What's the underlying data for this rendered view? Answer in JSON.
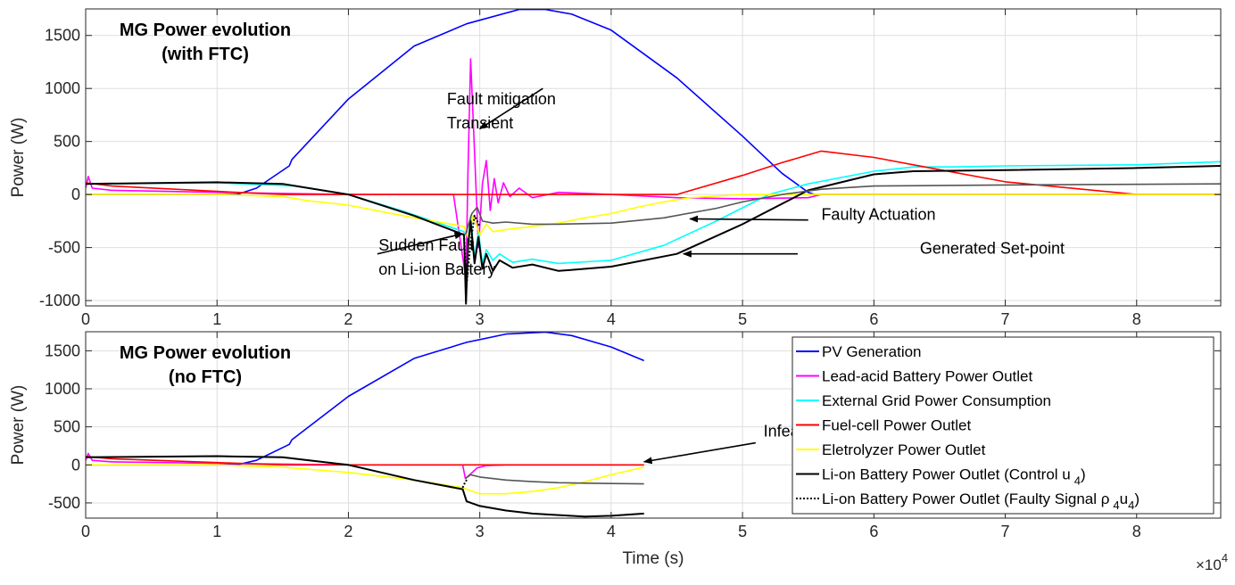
{
  "chart_data": [
    {
      "type": "line",
      "title": "MG Power evolution",
      "title_line2": "(with FTC)",
      "xlabel": "",
      "ylabel": "Power (W)",
      "xlim": [
        0,
        86400
      ],
      "ylim": [
        -1050,
        1750
      ],
      "xticks": [
        0,
        10000,
        20000,
        30000,
        40000,
        50000,
        60000,
        70000,
        80000
      ],
      "xtick_labels": [
        "0",
        "1",
        "2",
        "3",
        "4",
        "5",
        "6",
        "7",
        "8"
      ],
      "yticks": [
        -1000,
        -500,
        0,
        500,
        1000,
        1500
      ],
      "ytick_labels": [
        "-1000",
        "-500",
        "0",
        "500",
        "1000",
        "1500"
      ],
      "grid": true,
      "annotations": [
        {
          "lines": [
            "Fault mitigation",
            "Transient"
          ],
          "text_at": [
            27500,
            850
          ],
          "arrow_from": [
            34800,
            1000
          ],
          "arrow_to": [
            30000,
            620
          ]
        },
        {
          "lines": [
            "Faulty Actuation"
          ],
          "text_at": [
            56000,
            -240
          ],
          "arrow_from": [
            55000,
            -240
          ],
          "arrow_to": [
            46000,
            -230
          ]
        },
        {
          "lines": [
            "Generated Set-point"
          ],
          "text_at": [
            63500,
            -560
          ],
          "arrow_from": [
            54200,
            -560
          ],
          "arrow_to": [
            45500,
            -560
          ]
        },
        {
          "lines": [
            "Sudden Fault",
            "on Li-ion Battery"
          ],
          "text_at": [
            22300,
            -530
          ],
          "arrow_from": [
            22200,
            -560
          ],
          "arrow_to": [
            28700,
            -370
          ]
        }
      ],
      "series": [
        {
          "name": "PV Generation",
          "color": "#0000ff",
          "x": [
            0,
            5000,
            11500,
            13000,
            15500,
            15700,
            20000,
            25000,
            29000,
            33000,
            35000,
            37000,
            40000,
            45000,
            50000,
            53000,
            55000,
            55500,
            60000,
            70000,
            86400
          ],
          "y": [
            0,
            0,
            0,
            60,
            270,
            330,
            900,
            1400,
            1610,
            1745,
            1745,
            1700,
            1550,
            1100,
            550,
            200,
            20,
            0,
            0,
            0,
            0
          ]
        },
        {
          "name": "Lead-acid Battery Power Outlet",
          "color": "#ff00ff",
          "x": [
            0,
            200,
            500,
            2000,
            10000,
            20000,
            28000,
            28950,
            29100,
            29300,
            29600,
            29900,
            30200,
            30500,
            30800,
            31100,
            31400,
            31800,
            32300,
            33000,
            34000,
            36000,
            40000,
            45000,
            50000,
            55000,
            56000,
            60000,
            86400
          ],
          "y": [
            60,
            170,
            60,
            40,
            20,
            0,
            0,
            -800,
            200,
            1280,
            400,
            -500,
            100,
            320,
            -150,
            150,
            -80,
            110,
            -20,
            60,
            -30,
            20,
            0,
            -30,
            -40,
            -30,
            0,
            0,
            0
          ]
        },
        {
          "name": "External Grid Power Consumption",
          "color": "#00ffff",
          "x": [
            0,
            10000,
            16000,
            20000,
            24000,
            28800,
            28950,
            29100,
            29300,
            29600,
            29900,
            30200,
            30500,
            31000,
            31500,
            32500,
            34000,
            36000,
            40000,
            44000,
            48000,
            52000,
            55000,
            60000,
            63000,
            66000,
            70000,
            80000,
            86400
          ],
          "y": [
            100,
            110,
            80,
            0,
            -150,
            -350,
            -1000,
            -500,
            -200,
            -600,
            -350,
            -650,
            -520,
            -620,
            -560,
            -640,
            -610,
            -650,
            -620,
            -480,
            -250,
            0,
            100,
            220,
            260,
            260,
            270,
            280,
            310
          ]
        },
        {
          "name": "Fuel-cell Power Outlet",
          "color": "#ff0000",
          "x": [
            0,
            2000,
            10000,
            15000,
            20000,
            40000,
            45000,
            50000,
            53000,
            56000,
            60000,
            63000,
            70000,
            80000,
            86400
          ],
          "y": [
            110,
            80,
            30,
            0,
            0,
            0,
            0,
            180,
            300,
            410,
            350,
            280,
            120,
            0,
            0
          ]
        },
        {
          "name": "Eletrolyzer Power Outlet",
          "color": "#ffff00",
          "x": [
            0,
            10000,
            15000,
            17000,
            20000,
            25000,
            28800,
            29100,
            29500,
            30000,
            30500,
            31000,
            32000,
            34000,
            36000,
            38000,
            40000,
            42000,
            44000,
            46000,
            50000,
            55000,
            60000,
            86400
          ],
          "y": [
            0,
            0,
            -20,
            -60,
            -100,
            -220,
            -300,
            -400,
            -200,
            -380,
            -280,
            -350,
            -330,
            -300,
            -270,
            -220,
            -180,
            -120,
            -70,
            -30,
            0,
            0,
            0,
            0
          ]
        },
        {
          "name": "Li-on Battery Power Outlet (Control u 4)",
          "color": "#000000",
          "x": [
            0,
            10000,
            15000,
            16000,
            20000,
            25000,
            28800,
            28950,
            29100,
            29300,
            29600,
            29900,
            30200,
            30500,
            31000,
            31500,
            32500,
            34000,
            36000,
            40000,
            45000,
            50000,
            55000,
            60000,
            63000,
            70000,
            80000,
            86400
          ],
          "y": [
            100,
            115,
            100,
            80,
            0,
            -200,
            -380,
            -1030,
            -500,
            -250,
            -650,
            -400,
            -700,
            -560,
            -720,
            -620,
            -690,
            -660,
            -720,
            -680,
            -560,
            -280,
            40,
            190,
            220,
            230,
            250,
            270
          ]
        },
        {
          "name": "Li-on Battery Power Outlet (Faulty Signal ρ4u4)",
          "color": "#000000",
          "dashed": true,
          "x": [
            28800,
            29000,
            29300,
            29600,
            30000
          ],
          "y": [
            -380,
            -850,
            -450,
            -200,
            -300
          ]
        },
        {
          "name": "Faulty Actuation",
          "color": "#555555",
          "x": [
            28900,
            29400,
            29800,
            30200,
            31000,
            32000,
            34000,
            36000,
            40000,
            44000,
            48000,
            50000,
            53000,
            56000,
            60000,
            70000,
            86400
          ],
          "y": [
            -380,
            -180,
            -120,
            -250,
            -270,
            -260,
            -280,
            -280,
            -270,
            -220,
            -130,
            -70,
            0,
            50,
            80,
            90,
            100
          ]
        }
      ]
    },
    {
      "type": "line",
      "title": "MG Power evolution",
      "title_line2": "(no FTC)",
      "xlabel": "Time (s)",
      "x_exponent": "×10",
      "x_exponent_power": "4",
      "ylabel": "Power (W)",
      "xlim": [
        0,
        86400
      ],
      "ylim": [
        -700,
        1750
      ],
      "xticks": [
        0,
        10000,
        20000,
        30000,
        40000,
        50000,
        60000,
        70000,
        80000
      ],
      "xtick_labels": [
        "0",
        "1",
        "2",
        "3",
        "4",
        "5",
        "6",
        "7",
        "8"
      ],
      "yticks": [
        -500,
        0,
        500,
        1000,
        1500
      ],
      "ytick_labels": [
        "-500",
        "0",
        "500",
        "1000",
        "1500"
      ],
      "grid": true,
      "legend": "right",
      "annotations": [
        {
          "lines": [
            "Infeasibility"
          ],
          "text_at": [
            51600,
            370
          ],
          "arrow_from": [
            51000,
            290
          ],
          "arrow_to": [
            42500,
            40
          ]
        }
      ],
      "series": [
        {
          "name": "PV Generation",
          "color": "#0000ff",
          "x": [
            0,
            5000,
            11500,
            13000,
            15500,
            15700,
            20000,
            25000,
            29000,
            32000,
            35000,
            37000,
            40000,
            42500
          ],
          "y": [
            0,
            0,
            0,
            60,
            270,
            330,
            900,
            1400,
            1610,
            1720,
            1745,
            1700,
            1550,
            1370
          ]
        },
        {
          "name": "Lead-acid Battery Power Outlet",
          "color": "#ff00ff",
          "x": [
            0,
            200,
            500,
            2000,
            10000,
            20000,
            28700,
            28900,
            29300,
            29800,
            30500,
            32000,
            35000,
            42500
          ],
          "y": [
            60,
            150,
            60,
            40,
            20,
            0,
            0,
            -180,
            -120,
            -40,
            -10,
            0,
            0,
            0
          ]
        },
        {
          "name": "External Grid Power Consumption",
          "color": "#00ffff",
          "x": [
            0,
            10000,
            15000,
            16000,
            20000,
            25000,
            28700,
            29000,
            30000,
            32000,
            34000,
            36000,
            38000,
            40000,
            42500
          ],
          "y": [
            100,
            115,
            100,
            80,
            0,
            -200,
            -320,
            -480,
            -540,
            -600,
            -640,
            -660,
            -680,
            -670,
            -640
          ]
        },
        {
          "name": "Fuel-cell Power Outlet",
          "color": "#ff0000",
          "x": [
            0,
            2000,
            10000,
            15000,
            20000,
            30000,
            42500
          ],
          "y": [
            110,
            80,
            30,
            0,
            0,
            0,
            0
          ]
        },
        {
          "name": "Eletrolyzer Power Outlet",
          "color": "#ffff00",
          "x": [
            0,
            10000,
            15000,
            20000,
            25000,
            28700,
            29300,
            30000,
            32000,
            34000,
            36000,
            38000,
            40000,
            42500
          ],
          "y": [
            0,
            0,
            -30,
            -100,
            -200,
            -300,
            -340,
            -380,
            -380,
            -350,
            -300,
            -220,
            -130,
            -30
          ]
        },
        {
          "name": "Li-on Battery Power Outlet (Control u 4)",
          "color": "#000000",
          "x": [
            0,
            10000,
            15000,
            16000,
            20000,
            25000,
            28700,
            29000,
            30000,
            32000,
            34000,
            36000,
            38000,
            40000,
            42500
          ],
          "y": [
            100,
            115,
            100,
            80,
            0,
            -200,
            -320,
            -480,
            -540,
            -600,
            -640,
            -660,
            -680,
            -670,
            -640
          ]
        },
        {
          "name": "Li-on Battery Power Outlet (Faulty Signal ρ4u4)",
          "color": "#000000",
          "dashed": true,
          "x": [
            28700,
            28900,
            29100
          ],
          "y": [
            -300,
            -220,
            -180
          ]
        },
        {
          "name": "Faulty Actuation",
          "color": "#555555",
          "x": [
            28900,
            29300,
            30000,
            32000,
            34000,
            36000,
            38000,
            40000,
            42500
          ],
          "y": [
            -180,
            -130,
            -160,
            -200,
            -220,
            -235,
            -240,
            -245,
            -250
          ]
        }
      ],
      "legend_entries": [
        {
          "label": "PV Generation",
          "color": "#0000ff",
          "dashed": false
        },
        {
          "label": "Lead-acid Battery Power Outlet",
          "color": "#ff00ff",
          "dashed": false
        },
        {
          "label": "External Grid Power Consumption",
          "color": "#00ffff",
          "dashed": false
        },
        {
          "label": "Fuel-cell Power Outlet",
          "color": "#ff0000",
          "dashed": false
        },
        {
          "label": "Eletrolyzer Power Outlet",
          "color": "#ffff00",
          "dashed": false
        },
        {
          "label": "Li-on Battery Power Outlet (Control u",
          "sub": "4",
          "after": ")",
          "color": "#000000",
          "dashed": false
        },
        {
          "label": "Li-on Battery Power Outlet (Faulty Signal ρ",
          "sub": "4",
          "mid": "u",
          "sub2": "4",
          "after": ")",
          "color": "#000000",
          "dashed": true
        }
      ]
    }
  ]
}
